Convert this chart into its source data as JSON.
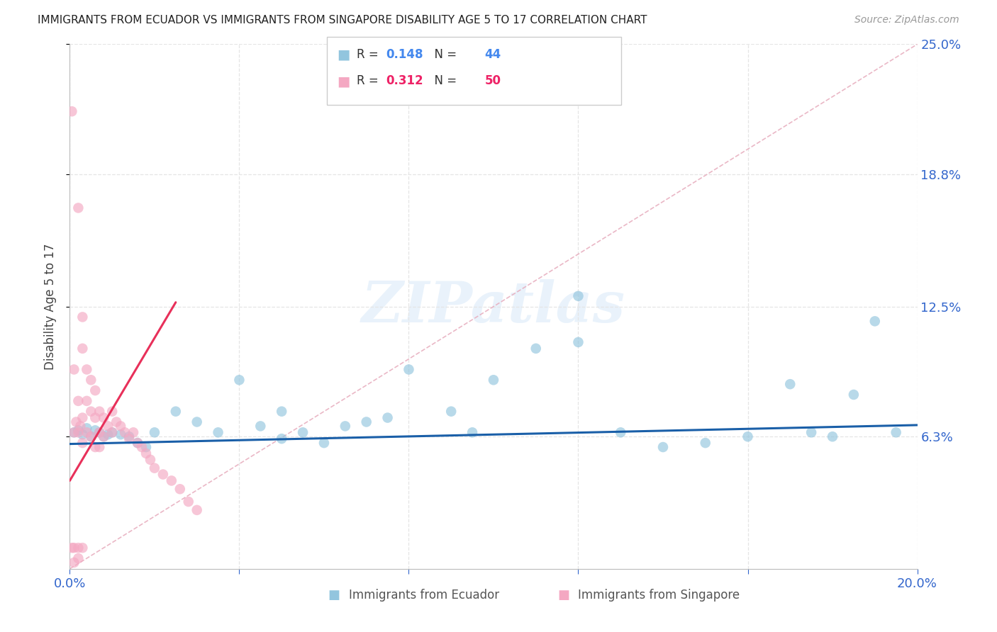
{
  "title": "IMMIGRANTS FROM ECUADOR VS IMMIGRANTS FROM SINGAPORE DISABILITY AGE 5 TO 17 CORRELATION CHART",
  "source": "Source: ZipAtlas.com",
  "ylabel": "Disability Age 5 to 17",
  "xlim": [
    0.0,
    0.2
  ],
  "ylim": [
    0.0,
    0.25
  ],
  "ytick_right": [
    0.063,
    0.125,
    0.188,
    0.25
  ],
  "ytick_right_labels": [
    "6.3%",
    "12.5%",
    "18.8%",
    "25.0%"
  ],
  "ecuador_color": "#92c5de",
  "singapore_color": "#f4a8c2",
  "ecuador_R": "0.148",
  "ecuador_N": "44",
  "singapore_R": "0.312",
  "singapore_N": "50",
  "blue_line_color": "#1a5fa8",
  "pink_line_color": "#e8305a",
  "ref_line_color": "#e8b0c0",
  "watermark": "ZIPatlas",
  "legend_label_ecuador": "Immigrants from Ecuador",
  "legend_label_singapore": "Immigrants from Singapore",
  "R_color_ecuador": "#4488ee",
  "R_color_singapore": "#ee2266",
  "title_color": "#222222",
  "axis_label_color": "#3366cc",
  "grid_color": "#e5e5e5",
  "ec_x": [
    0.001,
    0.002,
    0.003,
    0.004,
    0.005,
    0.006,
    0.007,
    0.008,
    0.009,
    0.01,
    0.012,
    0.014,
    0.016,
    0.018,
    0.02,
    0.025,
    0.03,
    0.035,
    0.04,
    0.045,
    0.05,
    0.055,
    0.06,
    0.065,
    0.07,
    0.075,
    0.08,
    0.09,
    0.095,
    0.1,
    0.11,
    0.12,
    0.13,
    0.14,
    0.15,
    0.16,
    0.17,
    0.175,
    0.18,
    0.185,
    0.19,
    0.195,
    0.05,
    0.12
  ],
  "ec_y": [
    0.065,
    0.066,
    0.064,
    0.067,
    0.063,
    0.066,
    0.065,
    0.063,
    0.064,
    0.065,
    0.064,
    0.063,
    0.06,
    0.058,
    0.065,
    0.075,
    0.07,
    0.065,
    0.09,
    0.068,
    0.075,
    0.065,
    0.06,
    0.068,
    0.07,
    0.072,
    0.095,
    0.075,
    0.065,
    0.09,
    0.105,
    0.108,
    0.065,
    0.058,
    0.06,
    0.063,
    0.088,
    0.065,
    0.063,
    0.083,
    0.118,
    0.065,
    0.062,
    0.13
  ],
  "sg_x": [
    0.0005,
    0.001,
    0.001,
    0.0015,
    0.002,
    0.002,
    0.002,
    0.0025,
    0.003,
    0.003,
    0.003,
    0.003,
    0.004,
    0.004,
    0.004,
    0.005,
    0.005,
    0.005,
    0.006,
    0.006,
    0.006,
    0.007,
    0.007,
    0.007,
    0.008,
    0.008,
    0.009,
    0.01,
    0.01,
    0.011,
    0.012,
    0.013,
    0.014,
    0.015,
    0.016,
    0.017,
    0.018,
    0.019,
    0.02,
    0.022,
    0.024,
    0.026,
    0.028,
    0.03,
    0.0005,
    0.001,
    0.002,
    0.003,
    0.001,
    0.002
  ],
  "sg_y": [
    0.218,
    0.095,
    0.065,
    0.07,
    0.172,
    0.08,
    0.065,
    0.068,
    0.12,
    0.105,
    0.072,
    0.06,
    0.095,
    0.08,
    0.065,
    0.09,
    0.075,
    0.063,
    0.085,
    0.072,
    0.058,
    0.075,
    0.065,
    0.058,
    0.072,
    0.063,
    0.068,
    0.075,
    0.065,
    0.07,
    0.068,
    0.065,
    0.062,
    0.065,
    0.06,
    0.058,
    0.055,
    0.052,
    0.048,
    0.045,
    0.042,
    0.038,
    0.032,
    0.028,
    0.01,
    0.01,
    0.01,
    0.01,
    0.003,
    0.005
  ],
  "blue_line_x": [
    0.0,
    0.2
  ],
  "blue_line_y": [
    0.0595,
    0.0685
  ],
  "pink_line_x": [
    0.0,
    0.025
  ],
  "pink_line_y": [
    0.042,
    0.127
  ]
}
